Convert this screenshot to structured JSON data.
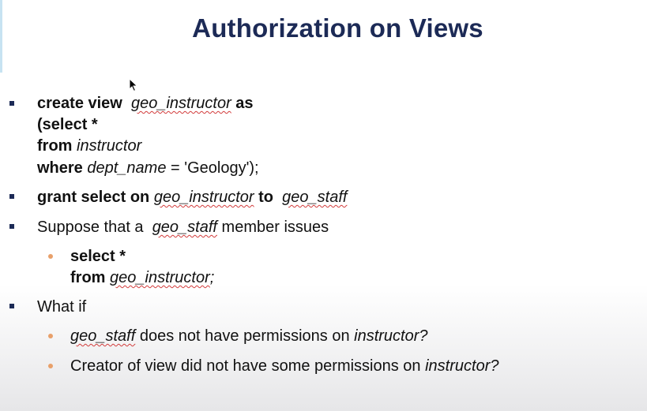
{
  "slide": {
    "title": "Authorization on Views",
    "b1": {
      "l1_kw": "create view",
      "l1_name": "geo_instructor",
      "l1_kw2": "as",
      "l2": "(select *",
      "l3_kw": "from",
      "l3_name": "instructor",
      "l4_kw": "where",
      "l4_col": "dept_name",
      "l4_rest": "= 'Geology');"
    },
    "b2": {
      "kw1": "grant select on",
      "name1": "geo_instructor",
      "kw2": "to",
      "name2": "geo_staff"
    },
    "b3": {
      "pre": "Suppose that a",
      "name": "geo_staff",
      "post": "member issues",
      "sub_l1": "select *",
      "sub_l2_kw": "from",
      "sub_l2_name": "geo_instructor",
      "sub_l2_end": ";"
    },
    "b4": {
      "text": "What if",
      "s1_name": "geo_staff",
      "s1_mid": "does not have permissions on",
      "s1_end": "instructor?",
      "s2_pre": "Creator of view did not have some permissions on",
      "s2_end": "instructor?"
    }
  }
}
